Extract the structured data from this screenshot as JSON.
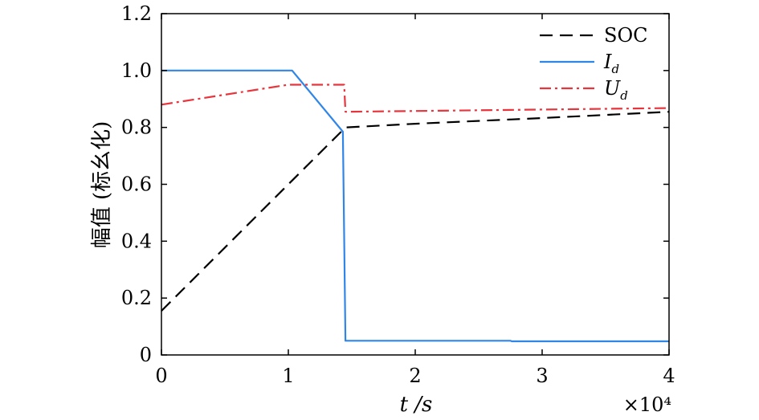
{
  "chart_data": {
    "type": "line",
    "xlabel": "t /s",
    "ylabel": "幅值 (标幺化)",
    "x_multiplier": "×10⁴",
    "xlim": [
      0,
      40000
    ],
    "ylim": [
      0,
      1.2
    ],
    "xticks": [
      0,
      10000,
      20000,
      30000,
      40000
    ],
    "xtick_labels": [
      "0",
      "1",
      "2",
      "3",
      "4"
    ],
    "yticks": [
      0,
      0.2,
      0.4,
      0.6,
      0.8,
      1.0,
      1.2
    ],
    "ytick_labels": [
      "0",
      "0.2",
      "0.4",
      "0.6",
      "0.8",
      "1.0",
      "1.2"
    ],
    "grid": false,
    "legend_position": "top-right",
    "series": [
      {
        "name": "SOC",
        "label_main": "SOC",
        "label_sub": "",
        "color": "#000000",
        "style": "dashed",
        "x": [
          0,
          10000,
          14500,
          20000,
          30000,
          40000
        ],
        "y": [
          0.155,
          0.6,
          0.8,
          0.813,
          0.833,
          0.855
        ]
      },
      {
        "name": "Id",
        "label_main": "I",
        "label_sub": "d",
        "color": "#2f86e8",
        "style": "solid",
        "x": [
          0,
          10300,
          14300,
          14500,
          27500,
          27600,
          40000
        ],
        "y": [
          1.0,
          1.0,
          0.785,
          0.05,
          0.05,
          0.048,
          0.048
        ]
      },
      {
        "name": "Ud",
        "label_main": "U",
        "label_sub": "d",
        "color": "#e8343c",
        "style": "dashdot",
        "x": [
          0,
          10000,
          14400,
          14500,
          40000
        ],
        "y": [
          0.88,
          0.95,
          0.95,
          0.855,
          0.868
        ]
      }
    ]
  }
}
